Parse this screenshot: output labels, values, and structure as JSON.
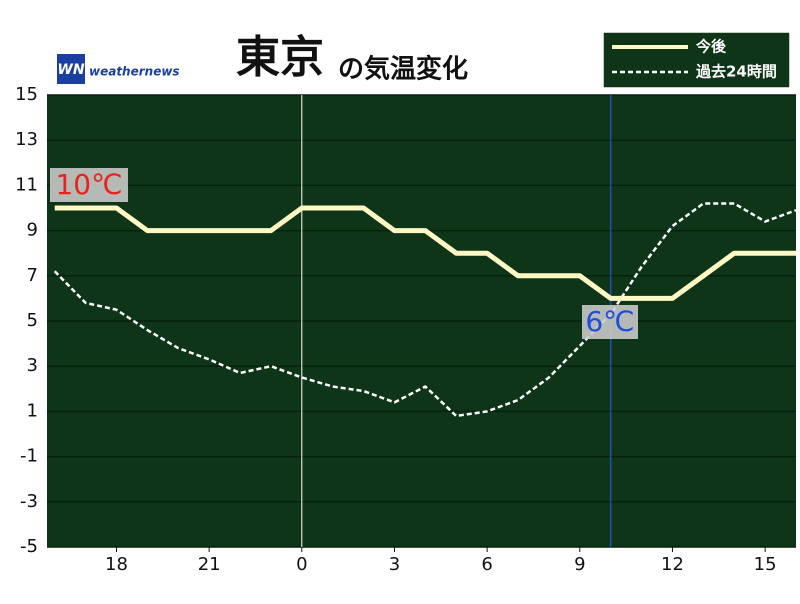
{
  "chart_data": {
    "type": "line",
    "title": "東京",
    "subtitle": "の気温変化",
    "logo": {
      "mark": "WN",
      "text": "weathernews"
    },
    "x": [
      16,
      17,
      18,
      19,
      20,
      21,
      22,
      23,
      24,
      25,
      26,
      27,
      28,
      29,
      30,
      31,
      32,
      33,
      34,
      35,
      36,
      37,
      38,
      39,
      40
    ],
    "xlim": [
      15.75,
      40
    ],
    "xticks": [
      {
        "value": 18,
        "label": "18"
      },
      {
        "value": 21,
        "label": "21"
      },
      {
        "value": 24,
        "label": "0"
      },
      {
        "value": 27,
        "label": "3"
      },
      {
        "value": 30,
        "label": "6"
      },
      {
        "value": 33,
        "label": "9"
      },
      {
        "value": 36,
        "label": "12"
      },
      {
        "value": 39,
        "label": "15"
      }
    ],
    "ylim": [
      -5,
      15
    ],
    "yticks": [
      15,
      13,
      11,
      9,
      7,
      5,
      3,
      1,
      -1,
      -3,
      -5
    ],
    "grid": true,
    "background": "#0f3519",
    "day_line_x": 24,
    "now_line": {
      "x": 34,
      "color": "#1f4fb8"
    },
    "legend": "top-right",
    "series": [
      {
        "name": "今後",
        "color": "#fff8c4",
        "style": "solid",
        "values": [
          10,
          10,
          10,
          9,
          9,
          9,
          9,
          9,
          10,
          10,
          10,
          9,
          9,
          8,
          8,
          7,
          7,
          7,
          6,
          6,
          6,
          7,
          8,
          8,
          8
        ]
      },
      {
        "name": "過去24時間",
        "color": "#ffffff",
        "style": "dashed",
        "values": [
          7.2,
          5.8,
          5.5,
          4.6,
          3.8,
          3.3,
          2.7,
          3.0,
          2.5,
          2.1,
          1.9,
          1.4,
          2.1,
          0.8,
          1.0,
          1.5,
          2.5,
          3.9,
          5.3,
          7.4,
          9.2,
          10.2,
          10.2,
          9.4,
          9.9
        ]
      }
    ],
    "annotations": [
      {
        "text": "10℃",
        "color": "#e8231d"
      },
      {
        "text": "6℃",
        "color": "#1f4fd8"
      }
    ]
  }
}
